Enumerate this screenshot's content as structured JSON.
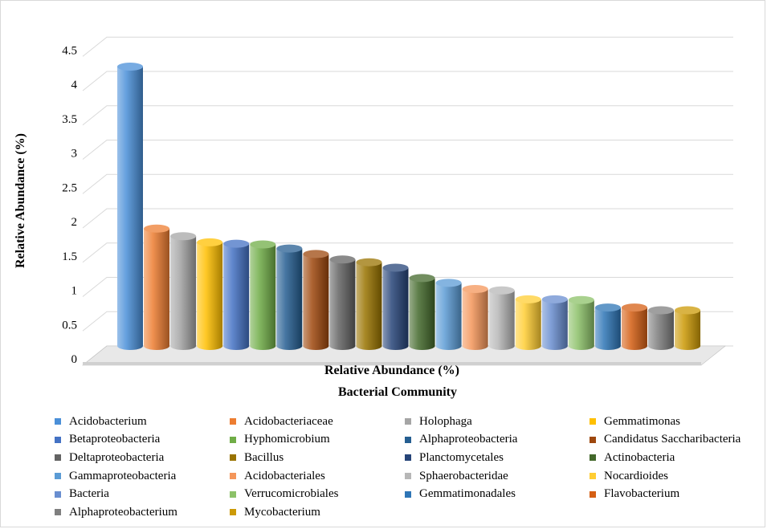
{
  "chart_data": {
    "type": "bar",
    "title": "",
    "xlabel": "Relative Abundance (%)",
    "xlabel2": "Bacterial Community",
    "ylabel": "Relative Abundance  (%)",
    "ylim": [
      0,
      4.5
    ],
    "yticks": [
      "0",
      "0.5",
      "1",
      "1.5",
      "2",
      "2.5",
      "3",
      "3.5",
      "4",
      "4.5"
    ],
    "grid": true,
    "legend_position": "bottom",
    "bars": [
      {
        "name": " Acidobacterium",
        "value": 4.07,
        "color": "#4a8fd8"
      },
      {
        "name": " Acidobacteriaceae",
        "value": 1.71,
        "color": "#ed7d31"
      },
      {
        "name": " Holophaga",
        "value": 1.6,
        "color": "#a5a5a5"
      },
      {
        "name": "Gemmatimonas",
        "value": 1.51,
        "color": "#ffc000"
      },
      {
        "name": "Betaproteobacteria",
        "value": 1.49,
        "color": "#4472c4"
      },
      {
        "name": "Hyphomicrobium",
        "value": 1.48,
        "color": "#70ad47"
      },
      {
        "name": "Alphaproteobacteria",
        "value": 1.42,
        "color": "#255e91"
      },
      {
        "name": "Candidatus Saccharibacteria",
        "value": 1.34,
        "color": "#9e480e"
      },
      {
        "name": "Deltaproteobacteria",
        "value": 1.26,
        "color": "#636363"
      },
      {
        "name": "Bacillus",
        "value": 1.22,
        "color": "#997300"
      },
      {
        "name": "Planctomycetales",
        "value": 1.14,
        "color": "#264478"
      },
      {
        "name": "Actinobacteria",
        "value": 0.99,
        "color": "#43682b"
      },
      {
        "name": "Gammaproteobacteria",
        "value": 0.92,
        "color": "#5b9bd5"
      },
      {
        "name": "Acidobacteriales",
        "value": 0.83,
        "color": "#f4965a"
      },
      {
        "name": "Sphaerobacteridae",
        "value": 0.81,
        "color": "#b7b7b7"
      },
      {
        "name": "Nocardioides",
        "value": 0.68,
        "color": "#ffcd33"
      },
      {
        "name": "Bacteria",
        "value": 0.68,
        "color": "#698ed0"
      },
      {
        "name": "Verrucomicrobiales",
        "value": 0.67,
        "color": "#8cc168"
      },
      {
        "name": "Gemmatimonadales",
        "value": 0.56,
        "color": "#2e75b6"
      },
      {
        "name": "Flavobacterium",
        "value": 0.56,
        "color": "#d55f14"
      },
      {
        "name": "Alphaproteobacterium",
        "value": 0.52,
        "color": "#7f7f7f"
      },
      {
        "name": "Mycobacterium",
        "value": 0.52,
        "color": "#cc9a06"
      }
    ]
  },
  "colors": {
    "gridline": "#d9d9d9",
    "floor": "#d9d9d9",
    "text": "#000000"
  }
}
